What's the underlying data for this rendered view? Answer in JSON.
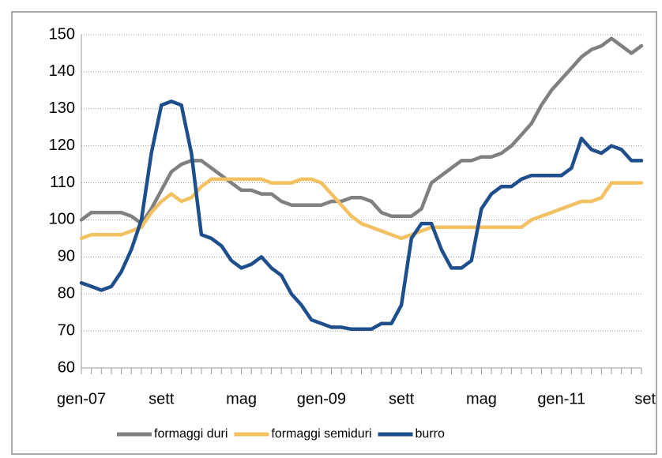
{
  "chart_data": {
    "type": "line",
    "categories": [
      "gen-07",
      null,
      null,
      null,
      null,
      null,
      null,
      null,
      "sett",
      null,
      null,
      null,
      null,
      null,
      null,
      null,
      "mag",
      null,
      null,
      null,
      null,
      null,
      null,
      null,
      "gen-09",
      null,
      null,
      null,
      null,
      null,
      null,
      null,
      "sett",
      null,
      null,
      null,
      null,
      null,
      null,
      null,
      "mag",
      null,
      null,
      null,
      null,
      null,
      null,
      null,
      "gen-11",
      null,
      null,
      null,
      null,
      null,
      null,
      null,
      "set"
    ],
    "series": [
      {
        "name": "formaggi duri",
        "color": "#808080",
        "values": [
          100,
          102,
          102,
          102,
          102,
          101,
          99,
          103,
          108,
          113,
          115,
          116,
          116,
          114,
          112,
          110,
          108,
          108,
          107,
          107,
          105,
          104,
          104,
          104,
          104,
          105,
          105,
          106,
          106,
          105,
          102,
          101,
          101,
          101,
          103,
          110,
          112,
          114,
          116,
          116,
          117,
          117,
          118,
          120,
          123,
          126,
          131,
          135,
          138,
          141,
          144,
          146,
          147,
          149,
          147,
          145,
          147
        ]
      },
      {
        "name": "formaggi semiduri",
        "color": "#f3c062",
        "values": [
          95,
          96,
          96,
          96,
          96,
          97,
          98,
          102,
          105,
          107,
          105,
          106,
          109,
          111,
          111,
          111,
          111,
          111,
          111,
          110,
          110,
          110,
          111,
          111,
          110,
          107,
          104,
          101,
          99,
          98,
          97,
          96,
          95,
          96,
          97,
          98,
          98,
          98,
          98,
          98,
          98,
          98,
          98,
          98,
          98,
          100,
          101,
          102,
          103,
          104,
          105,
          105,
          106,
          110,
          110,
          110,
          110
        ]
      },
      {
        "name": "burro",
        "color": "#1f4e8c",
        "values": [
          83,
          82,
          81,
          82,
          86,
          92,
          100,
          118,
          131,
          132,
          131,
          118,
          96,
          95,
          93,
          89,
          87,
          88,
          90,
          87,
          85,
          80,
          77,
          73,
          72,
          71,
          71,
          70.5,
          70.5,
          70.5,
          72,
          72,
          77,
          95,
          99,
          99,
          92,
          87,
          87,
          89,
          103,
          107,
          109,
          109,
          111,
          112,
          112,
          112,
          112,
          114,
          122,
          119,
          118,
          120,
          119,
          116,
          116
        ]
      }
    ],
    "ylim": [
      60,
      150
    ],
    "yticks": [
      60,
      70,
      80,
      90,
      100,
      110,
      120,
      130,
      140,
      150
    ],
    "grid": true
  }
}
